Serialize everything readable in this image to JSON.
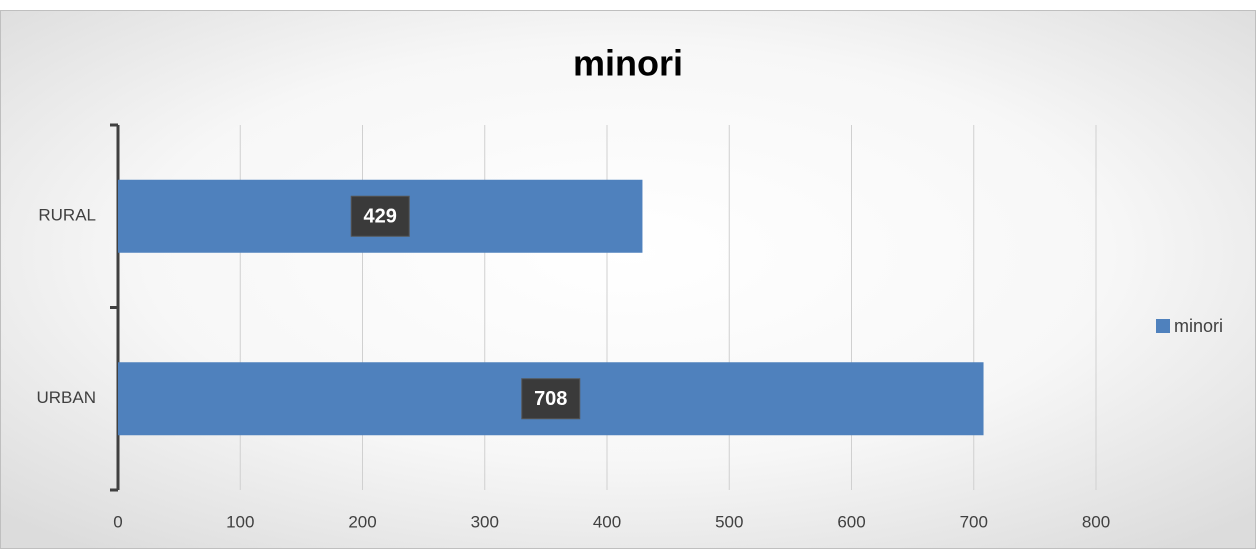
{
  "chart_data": {
    "type": "bar",
    "orientation": "horizontal",
    "title": "minori",
    "categories": [
      "RURAL",
      "URBAN"
    ],
    "series": [
      {
        "name": "minori",
        "color": "#4f81bd",
        "values": [
          429,
          708
        ]
      }
    ],
    "xlim": [
      0,
      800
    ],
    "xticks": [
      0,
      100,
      200,
      300,
      400,
      500,
      600,
      700,
      800
    ],
    "grid": true,
    "legend": "right"
  }
}
